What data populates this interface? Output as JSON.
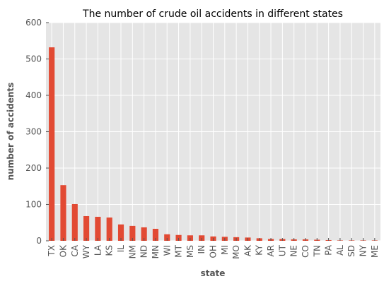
{
  "chart_data": {
    "type": "bar",
    "title": "The number of crude oil accidents in different states",
    "xlabel": "state",
    "ylabel": "number of accidents",
    "ylim": [
      0,
      600
    ],
    "yticks": [
      "0",
      "100",
      "200",
      "300",
      "400",
      "500",
      "600"
    ],
    "grid": true,
    "colors": {
      "bar": "#E24A33",
      "plot_background": "#E5E5E5",
      "grid": "#FFFFFF",
      "text": "#555555"
    },
    "categories": [
      "TX",
      "OK",
      "CA",
      "WY",
      "LA",
      "KS",
      "IL",
      "NM",
      "ND",
      "MN",
      "WI",
      "MT",
      "MS",
      "IN",
      "OH",
      "MI",
      "MO",
      "AK",
      "KY",
      "AR",
      "UT",
      "NE",
      "CO",
      "TN",
      "PA",
      "AL",
      "SD",
      "NY",
      "ME"
    ],
    "values": [
      532,
      153,
      101,
      68,
      66,
      64,
      45,
      41,
      37,
      33,
      18,
      16,
      15,
      15,
      12,
      11,
      10,
      9,
      7,
      5,
      5,
      4,
      4,
      3,
      2,
      1,
      1,
      1,
      1
    ]
  }
}
